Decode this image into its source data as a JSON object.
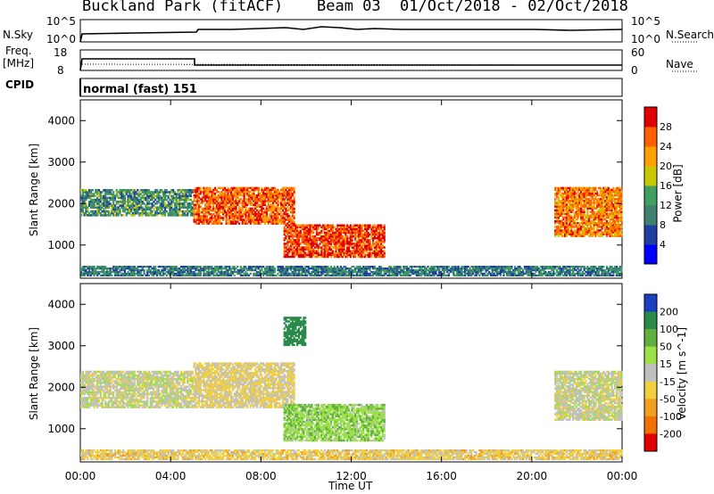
{
  "header": {
    "station": "Buckland Park (fitACF)",
    "beam": "Beam 03",
    "date_range": "01/Oct/2018 - 02/Oct/2018"
  },
  "top_panels": {
    "nsky_label": "N.Sky",
    "nsky_ticks": [
      "10^5",
      "10^0"
    ],
    "nsearch_label": "N.Search",
    "freq_label_1": "Freq.",
    "freq_label_2": "[MHz]",
    "freq_ticks": [
      "18",
      "8"
    ],
    "nave_label": "Nave",
    "nave_ticks": [
      "60",
      "0"
    ],
    "cpid_label": "CPID",
    "cpid_value": "normal (fast) 151"
  },
  "colors": {
    "power_scale": [
      "#0000ff",
      "#2040a0",
      "#3f7f70",
      "#3fa060",
      "#c8c800",
      "#ffa000",
      "#ff6000",
      "#e00000"
    ],
    "velocity_scale": [
      "#1a3fbf",
      "#2a8a4a",
      "#60b040",
      "#9ce048",
      "#c0c0c0",
      "#f0d040",
      "#f0a020",
      "#f07000",
      "#e00000"
    ]
  },
  "chart_data": [
    {
      "type": "heatmap",
      "title": "Power",
      "ylabel": "Slant Range [km]",
      "yticks": [
        "1000",
        "2000",
        "3000",
        "4000"
      ],
      "ylim": [
        200,
        4500
      ],
      "xticks": [
        "00:00",
        "04:00",
        "08:00",
        "12:00",
        "16:00",
        "20:00",
        "00:00"
      ],
      "colorbar_label": "Power [dB]",
      "colorbar_ticks": [
        "4",
        "8",
        "12",
        "16",
        "20",
        "24",
        "28"
      ],
      "colorbar_range": [
        0,
        32
      ],
      "regions": [
        {
          "t0": 0.0,
          "t1": 5.0,
          "r0": 1700,
          "r1": 2350,
          "value": 12
        },
        {
          "t0": 5.0,
          "t1": 9.5,
          "r0": 1500,
          "r1": 2400,
          "value": 26
        },
        {
          "t0": 9.0,
          "t1": 13.5,
          "r0": 700,
          "r1": 1500,
          "value": 28
        },
        {
          "t0": 21.0,
          "t1": 24.0,
          "r0": 1200,
          "r1": 2400,
          "value": 24
        },
        {
          "t0": 0.0,
          "t1": 24.0,
          "r0": 250,
          "r1": 500,
          "value": 10
        }
      ]
    },
    {
      "type": "heatmap",
      "title": "Velocity",
      "ylabel": "Slant Range [km]",
      "yticks": [
        "1000",
        "2000",
        "3000",
        "4000"
      ],
      "ylim": [
        200,
        4500
      ],
      "xticks": [
        "00:00",
        "04:00",
        "08:00",
        "12:00",
        "16:00",
        "20:00",
        "00:00"
      ],
      "xlabel": "Time UT",
      "colorbar_label": "Velocity [m s^-1]",
      "colorbar_ticks": [
        "200",
        "100",
        "50",
        "15",
        "-15",
        "-50",
        "-100",
        "-200"
      ],
      "colorbar_range": [
        -250,
        250
      ],
      "regions": [
        {
          "t0": 0.0,
          "t1": 5.0,
          "r0": 1500,
          "r1": 2400,
          "value": 0
        },
        {
          "t0": 5.0,
          "t1": 9.5,
          "r0": 1500,
          "r1": 2600,
          "value": -20
        },
        {
          "t0": 9.0,
          "t1": 13.5,
          "r0": 700,
          "r1": 1600,
          "value": 40
        },
        {
          "t0": 9.0,
          "t1": 10.0,
          "r0": 3000,
          "r1": 3700,
          "value": 150
        },
        {
          "t0": 21.0,
          "t1": 24.0,
          "r0": 1200,
          "r1": 2400,
          "value": 0
        },
        {
          "t0": 0.0,
          "t1": 24.0,
          "r0": 250,
          "r1": 500,
          "value": -30
        }
      ]
    }
  ]
}
